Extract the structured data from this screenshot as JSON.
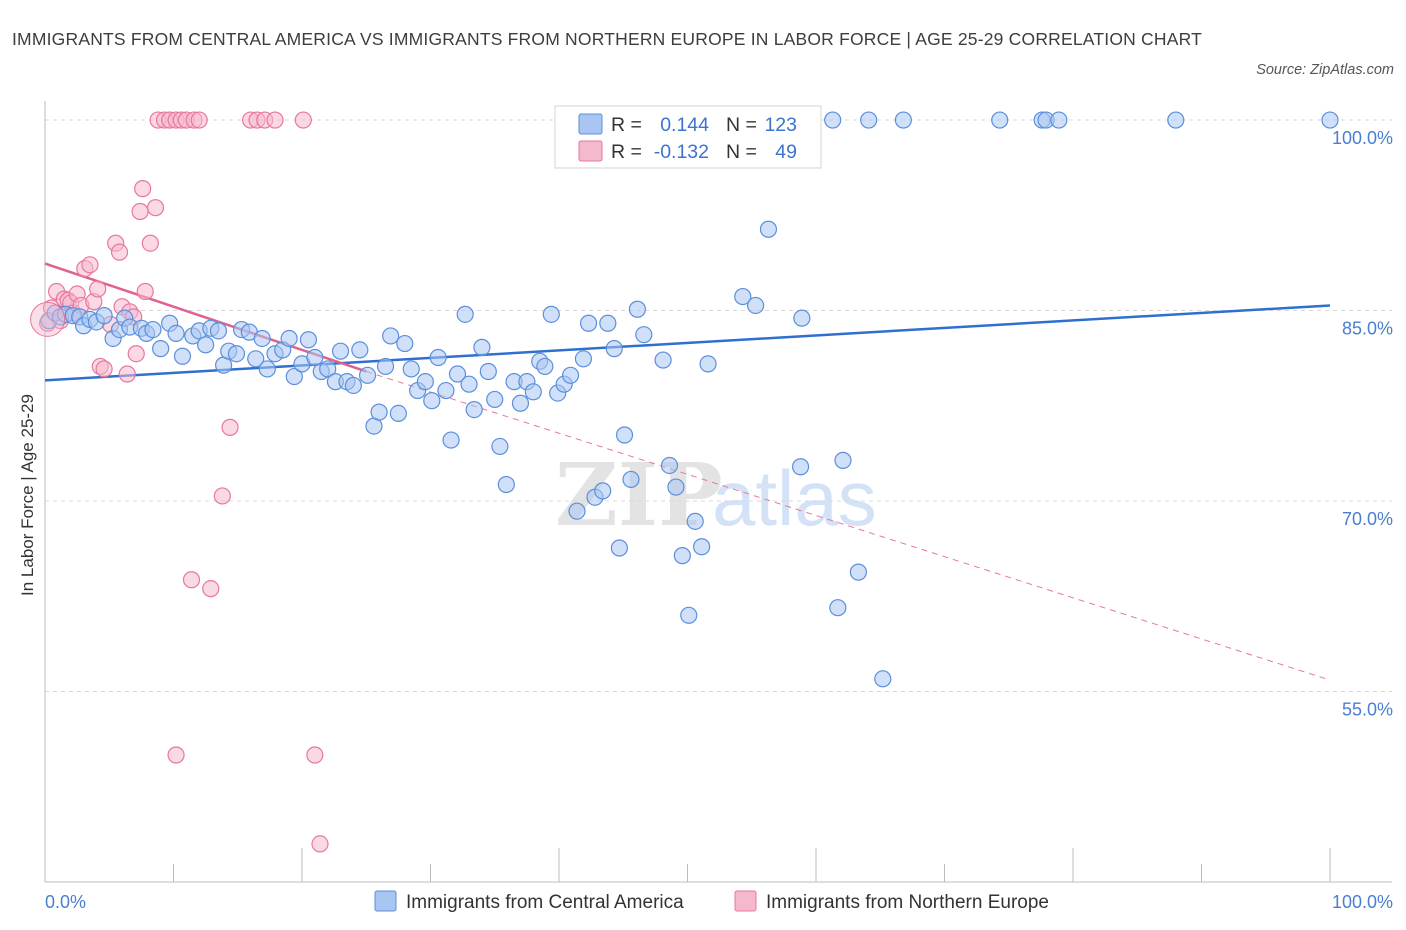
{
  "title": "IMMIGRANTS FROM CENTRAL AMERICA VS IMMIGRANTS FROM NORTHERN EUROPE IN LABOR FORCE | AGE 25-29 CORRELATION CHART",
  "source": "Source: ZipAtlas.com",
  "watermark": {
    "zip": "ZIP",
    "atlas": "atlas"
  },
  "colors": {
    "blue": "#5b8fdc",
    "blue_fill": "#a9c6f2",
    "blue_line": "#2f6fd0",
    "pink": "#e8779d",
    "pink_fill": "#f5b9cd",
    "pink_line": "#e0608e",
    "tick_text": "#4a7ed0"
  },
  "stats": {
    "r_label": "R =",
    "n_label": "N =",
    "rows": [
      {
        "r": "0.144",
        "n": "123"
      },
      {
        "r": "-0.132",
        "n": "49"
      }
    ]
  },
  "chart_data": {
    "type": "scatter",
    "title": "IMMIGRANTS FROM CENTRAL AMERICA VS IMMIGRANTS FROM NORTHERN EUROPE IN LABOR FORCE | AGE 25-29 CORRELATION CHART",
    "xlabel": "",
    "ylabel": "In Labor Force | Age 25-29",
    "xlim": [
      0,
      100
    ],
    "ylim": [
      40,
      101.5
    ],
    "x_ticks": [
      "0.0%",
      "100.0%"
    ],
    "y_ticks": [
      {
        "value": 100,
        "label": "100.0%"
      },
      {
        "value": 85,
        "label": "85.0%"
      },
      {
        "value": 70,
        "label": "70.0%"
      },
      {
        "value": 55,
        "label": "55.0%"
      }
    ],
    "grid": "horizontal dashed",
    "legend_position": "bottom-center",
    "series": [
      {
        "name": "Immigrants from Central America",
        "color": "#5b8fdc",
        "trend": {
          "x": [
            0,
            100
          ],
          "y": [
            79.5,
            85.4
          ]
        },
        "points": [
          [
            0.3,
            84.2
          ],
          [
            0.8,
            84.8
          ],
          [
            1.2,
            84.5
          ],
          [
            1.6,
            84.7
          ],
          [
            2.2,
            84.6
          ],
          [
            2.7,
            84.5
          ],
          [
            3.0,
            83.8
          ],
          [
            3.5,
            84.3
          ],
          [
            4.0,
            84.1
          ],
          [
            4.6,
            84.6
          ],
          [
            5.3,
            82.8
          ],
          [
            5.8,
            83.5
          ],
          [
            6.2,
            84.4
          ],
          [
            6.6,
            83.7
          ],
          [
            7.5,
            83.6
          ],
          [
            7.9,
            83.2
          ],
          [
            8.4,
            83.5
          ],
          [
            9.0,
            82.0
          ],
          [
            9.7,
            84.0
          ],
          [
            10.2,
            83.2
          ],
          [
            10.7,
            81.4
          ],
          [
            11.5,
            83.0
          ],
          [
            12.0,
            83.4
          ],
          [
            12.5,
            82.3
          ],
          [
            12.9,
            83.6
          ],
          [
            13.5,
            83.4
          ],
          [
            13.9,
            80.7
          ],
          [
            14.3,
            81.8
          ],
          [
            14.9,
            81.6
          ],
          [
            15.3,
            83.5
          ],
          [
            15.9,
            83.3
          ],
          [
            16.4,
            81.2
          ],
          [
            16.9,
            82.8
          ],
          [
            17.3,
            80.4
          ],
          [
            17.9,
            81.6
          ],
          [
            18.5,
            81.9
          ],
          [
            19.0,
            82.8
          ],
          [
            19.4,
            79.8
          ],
          [
            20.0,
            80.8
          ],
          [
            20.5,
            82.7
          ],
          [
            21.0,
            81.3
          ],
          [
            21.5,
            80.2
          ],
          [
            22.0,
            80.4
          ],
          [
            22.6,
            79.4
          ],
          [
            23.0,
            81.8
          ],
          [
            23.5,
            79.4
          ],
          [
            24.0,
            79.1
          ],
          [
            24.5,
            81.9
          ],
          [
            25.1,
            79.9
          ],
          [
            25.6,
            75.9
          ],
          [
            26.0,
            77.0
          ],
          [
            26.5,
            80.6
          ],
          [
            26.9,
            83.0
          ],
          [
            27.5,
            76.9
          ],
          [
            28.0,
            82.4
          ],
          [
            28.5,
            80.4
          ],
          [
            29.0,
            78.7
          ],
          [
            29.6,
            79.4
          ],
          [
            30.1,
            77.9
          ],
          [
            30.6,
            81.3
          ],
          [
            31.2,
            78.7
          ],
          [
            31.6,
            74.8
          ],
          [
            32.1,
            80.0
          ],
          [
            32.7,
            84.7
          ],
          [
            33.0,
            79.2
          ],
          [
            33.4,
            77.2
          ],
          [
            34.0,
            82.1
          ],
          [
            34.5,
            80.2
          ],
          [
            35.0,
            78.0
          ],
          [
            35.4,
            74.3
          ],
          [
            35.9,
            71.3
          ],
          [
            36.5,
            79.4
          ],
          [
            37.0,
            77.7
          ],
          [
            37.5,
            79.4
          ],
          [
            38.0,
            78.6
          ],
          [
            38.5,
            81.0
          ],
          [
            38.9,
            80.6
          ],
          [
            39.4,
            84.7
          ],
          [
            39.9,
            78.5
          ],
          [
            40.4,
            79.2
          ],
          [
            40.9,
            79.9
          ],
          [
            41.4,
            69.2
          ],
          [
            41.9,
            81.2
          ],
          [
            42.3,
            84.0
          ],
          [
            42.8,
            70.3
          ],
          [
            43.4,
            70.8
          ],
          [
            43.8,
            84.0
          ],
          [
            44.3,
            82.0
          ],
          [
            44.7,
            66.3
          ],
          [
            45.1,
            75.2
          ],
          [
            45.6,
            71.7
          ],
          [
            46.1,
            85.1
          ],
          [
            46.6,
            83.1
          ],
          [
            48.1,
            81.1
          ],
          [
            48.6,
            72.8
          ],
          [
            49.1,
            71.1
          ],
          [
            49.6,
            65.7
          ],
          [
            50.1,
            61.0
          ],
          [
            50.6,
            68.4
          ],
          [
            51.1,
            66.4
          ],
          [
            51.6,
            80.8
          ],
          [
            53.9,
            100
          ],
          [
            54.3,
            86.1
          ],
          [
            55.3,
            85.4
          ],
          [
            56.3,
            91.4
          ],
          [
            58.3,
            100
          ],
          [
            58.8,
            72.7
          ],
          [
            58.9,
            84.4
          ],
          [
            61.3,
            100
          ],
          [
            61.7,
            61.6
          ],
          [
            62.1,
            73.2
          ],
          [
            63.3,
            64.4
          ],
          [
            64.1,
            100
          ],
          [
            65.2,
            56.0
          ],
          [
            66.8,
            100
          ],
          [
            74.3,
            100
          ],
          [
            77.6,
            100
          ],
          [
            77.9,
            100
          ],
          [
            78.9,
            100
          ],
          [
            88.0,
            100
          ],
          [
            100.0,
            100
          ],
          [
            55.6,
            100
          ],
          [
            59.1,
            100
          ]
        ]
      },
      {
        "name": "Immigrants from Northern Europe",
        "color": "#e8779d",
        "trend": {
          "x": [
            0,
            25
          ],
          "y": [
            88.7,
            80.2
          ]
        },
        "trend_extended": {
          "x": [
            25,
            100
          ],
          "y": [
            80.2,
            55.9
          ]
        },
        "points": [
          [
            0.2,
            84.0
          ],
          [
            0.5,
            85.2
          ],
          [
            0.9,
            86.5
          ],
          [
            1.2,
            84.2
          ],
          [
            1.5,
            85.9
          ],
          [
            1.8,
            85.8
          ],
          [
            2.0,
            85.6
          ],
          [
            2.2,
            84.8
          ],
          [
            2.5,
            86.3
          ],
          [
            2.8,
            85.4
          ],
          [
            3.1,
            88.3
          ],
          [
            3.5,
            88.6
          ],
          [
            3.8,
            85.7
          ],
          [
            4.1,
            86.7
          ],
          [
            4.3,
            80.6
          ],
          [
            4.6,
            80.4
          ],
          [
            5.1,
            83.9
          ],
          [
            5.5,
            90.3
          ],
          [
            5.8,
            89.6
          ],
          [
            6.0,
            85.3
          ],
          [
            6.4,
            80.0
          ],
          [
            6.6,
            84.9
          ],
          [
            6.9,
            84.5
          ],
          [
            7.1,
            81.6
          ],
          [
            7.4,
            92.8
          ],
          [
            7.6,
            94.6
          ],
          [
            7.8,
            86.5
          ],
          [
            8.2,
            90.3
          ],
          [
            8.6,
            93.1
          ],
          [
            8.8,
            100
          ],
          [
            9.3,
            100
          ],
          [
            9.7,
            100
          ],
          [
            10.2,
            100
          ],
          [
            10.6,
            100
          ],
          [
            11.0,
            100
          ],
          [
            11.6,
            100
          ],
          [
            12.0,
            100
          ],
          [
            11.4,
            63.8
          ],
          [
            12.9,
            63.1
          ],
          [
            13.8,
            70.4
          ],
          [
            14.4,
            75.8
          ],
          [
            16.0,
            100
          ],
          [
            16.5,
            100
          ],
          [
            17.1,
            100
          ],
          [
            17.9,
            100
          ],
          [
            20.1,
            100
          ],
          [
            21.0,
            50.0
          ],
          [
            10.2,
            50.0
          ],
          [
            21.4,
            43.0
          ]
        ]
      }
    ]
  },
  "legend": [
    {
      "label": "Immigrants from Central America"
    },
    {
      "label": "Immigrants from Northern Europe"
    }
  ]
}
